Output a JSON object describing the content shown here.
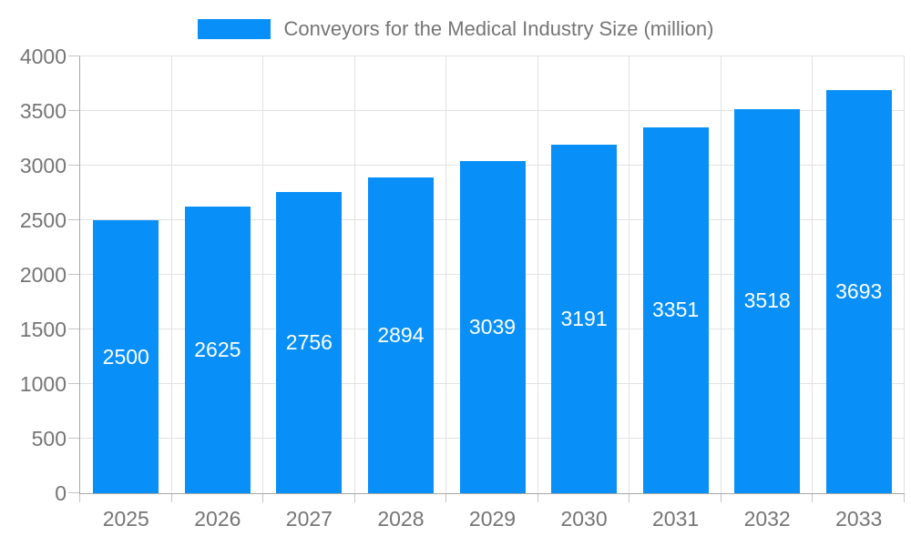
{
  "chart_data": {
    "type": "bar",
    "title": "Conveyors for the Medical Industry Size (million)",
    "categories": [
      "2025",
      "2026",
      "2027",
      "2028",
      "2029",
      "2030",
      "2031",
      "2032",
      "2033"
    ],
    "values": [
      2500,
      2625,
      2756,
      2894,
      3039,
      3191,
      3351,
      3518,
      3693
    ],
    "xlabel": "",
    "ylabel": "",
    "ylim": [
      0,
      4000
    ],
    "ytick_step": 500,
    "yticks": [
      "0",
      "500",
      "1000",
      "1500",
      "2000",
      "2500",
      "3000",
      "3500",
      "4000"
    ],
    "grid": true,
    "legend_position": "top",
    "value_labels_inside_bars": true,
    "colors": {
      "bar": "#0990F8",
      "bar_value_text": "#ffffff",
      "axis_text": "#757575",
      "grid_line": "#e2e2e2",
      "axis_line": "#a8a8a8",
      "tick_mark": "#c4c4c4",
      "background": "#ffffff"
    }
  }
}
